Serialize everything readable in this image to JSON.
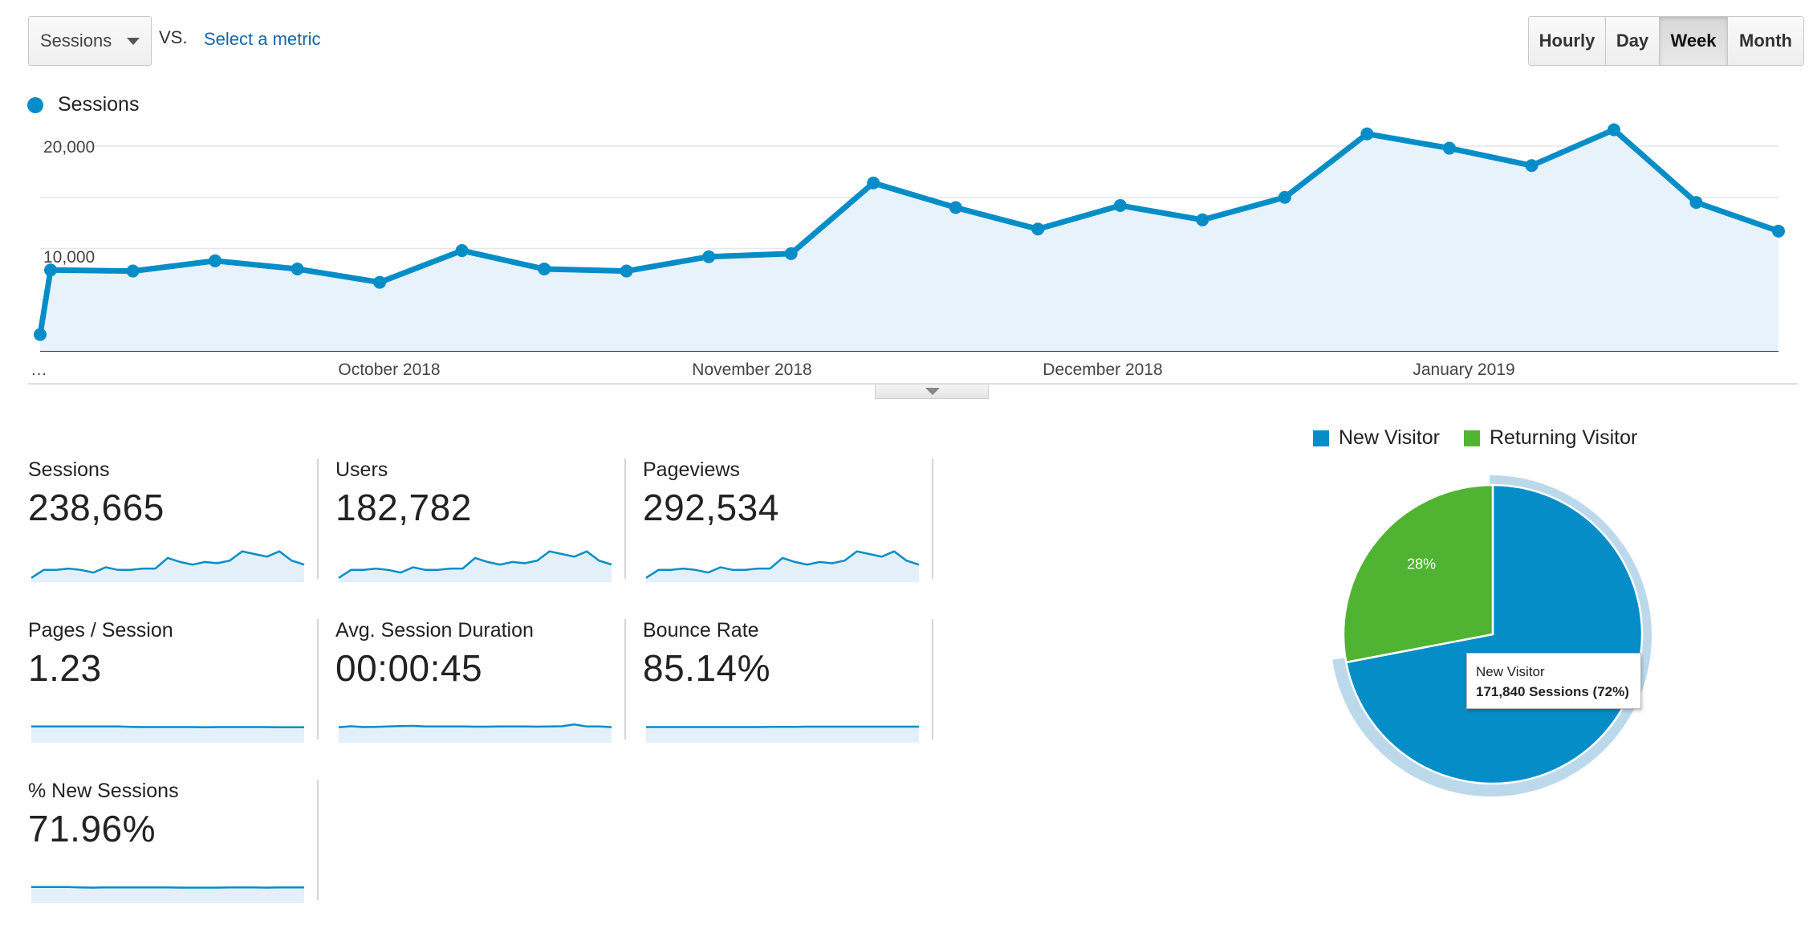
{
  "toolbar": {
    "metric_select": "Sessions",
    "vs_label": "VS.",
    "select_metric_link": "Select a metric",
    "granularity": [
      "Hourly",
      "Day",
      "Week",
      "Month"
    ],
    "granularity_active": "Week"
  },
  "chart_data": [
    {
      "type": "area",
      "series": [
        {
          "name": "Sessions",
          "values": [
            1600,
            7900,
            7800,
            8800,
            8000,
            6700,
            9800,
            8000,
            7800,
            9200,
            9500,
            16400,
            14000,
            11900,
            14200,
            12800,
            15000,
            21200,
            19800,
            18100,
            21600,
            14500,
            11700
          ]
        }
      ],
      "x_labels": [
        "…",
        "October 2018",
        "November 2018",
        "December 2018",
        "January 2019"
      ],
      "y_ticks": [
        "20,000",
        "10,000"
      ],
      "ylim": [
        0,
        23000
      ],
      "grid": true,
      "color": "#058dc7"
    },
    {
      "type": "pie",
      "legend": [
        "New Visitor",
        "Returning Visitor"
      ],
      "values": [
        72,
        28
      ],
      "colors": [
        "#058dc7",
        "#50b432"
      ],
      "slice_labels": [
        "",
        "28%"
      ],
      "highlighted": "New Visitor"
    }
  ],
  "legend": {
    "series_label": "Sessions"
  },
  "collapse": {
    "icon": "triangle-down-icon"
  },
  "scorecards": [
    {
      "title": "Sessions",
      "value": "238,665",
      "spark": [
        2,
        8,
        8,
        9,
        8,
        6,
        10,
        8,
        8,
        9,
        9,
        17,
        14,
        12,
        14,
        13,
        15,
        22,
        20,
        18,
        22,
        15,
        12
      ]
    },
    {
      "title": "Users",
      "value": "182,782",
      "spark": [
        2,
        8,
        8,
        9,
        8,
        6,
        10,
        8,
        8,
        9,
        9,
        17,
        14,
        12,
        14,
        13,
        15,
        22,
        20,
        18,
        22,
        15,
        12
      ]
    },
    {
      "title": "Pageviews",
      "value": "292,534",
      "spark": [
        2,
        8,
        8,
        9,
        8,
        6,
        10,
        8,
        8,
        9,
        9,
        17,
        14,
        12,
        14,
        13,
        15,
        22,
        20,
        18,
        22,
        15,
        12
      ]
    },
    {
      "title": "Pages / Session",
      "value": "1.23",
      "spark": [
        11,
        11,
        11,
        11,
        11,
        11,
        11,
        11,
        10.7,
        10.6,
        10.6,
        10.6,
        10.6,
        10.6,
        10.5,
        10.6,
        10.6,
        10.6,
        10.6,
        10.6,
        10.5,
        10.5,
        10.5
      ]
    },
    {
      "title": "Avg. Session Duration",
      "value": "00:00:45",
      "spark": [
        10.5,
        11.2,
        10.6,
        10.8,
        11,
        11.3,
        11.5,
        11,
        11,
        11,
        11.1,
        10.9,
        10.9,
        11,
        11,
        11.1,
        10.9,
        11,
        11.2,
        12.5,
        11,
        11,
        10.6
      ]
    },
    {
      "title": "Bounce Rate",
      "value": "85.14%",
      "spark": [
        10.6,
        10.6,
        10.6,
        10.6,
        10.6,
        10.6,
        10.6,
        10.6,
        10.6,
        10.6,
        10.7,
        10.7,
        10.8,
        10.9,
        10.9,
        10.9,
        10.9,
        10.9,
        10.9,
        10.9,
        10.9,
        10.9,
        10.9
      ]
    },
    {
      "title": "% New Sessions",
      "value": "71.96%",
      "spark": [
        11,
        11,
        11,
        11,
        10.8,
        10.6,
        10.8,
        10.8,
        10.8,
        10.8,
        10.8,
        10.7,
        10.6,
        10.6,
        10.6,
        10.6,
        10.7,
        10.7,
        10.7,
        10.6,
        10.8,
        10.7,
        10.7
      ]
    }
  ],
  "tooltip": {
    "label": "New Visitor",
    "value": "171,840 Sessions (72%)"
  }
}
